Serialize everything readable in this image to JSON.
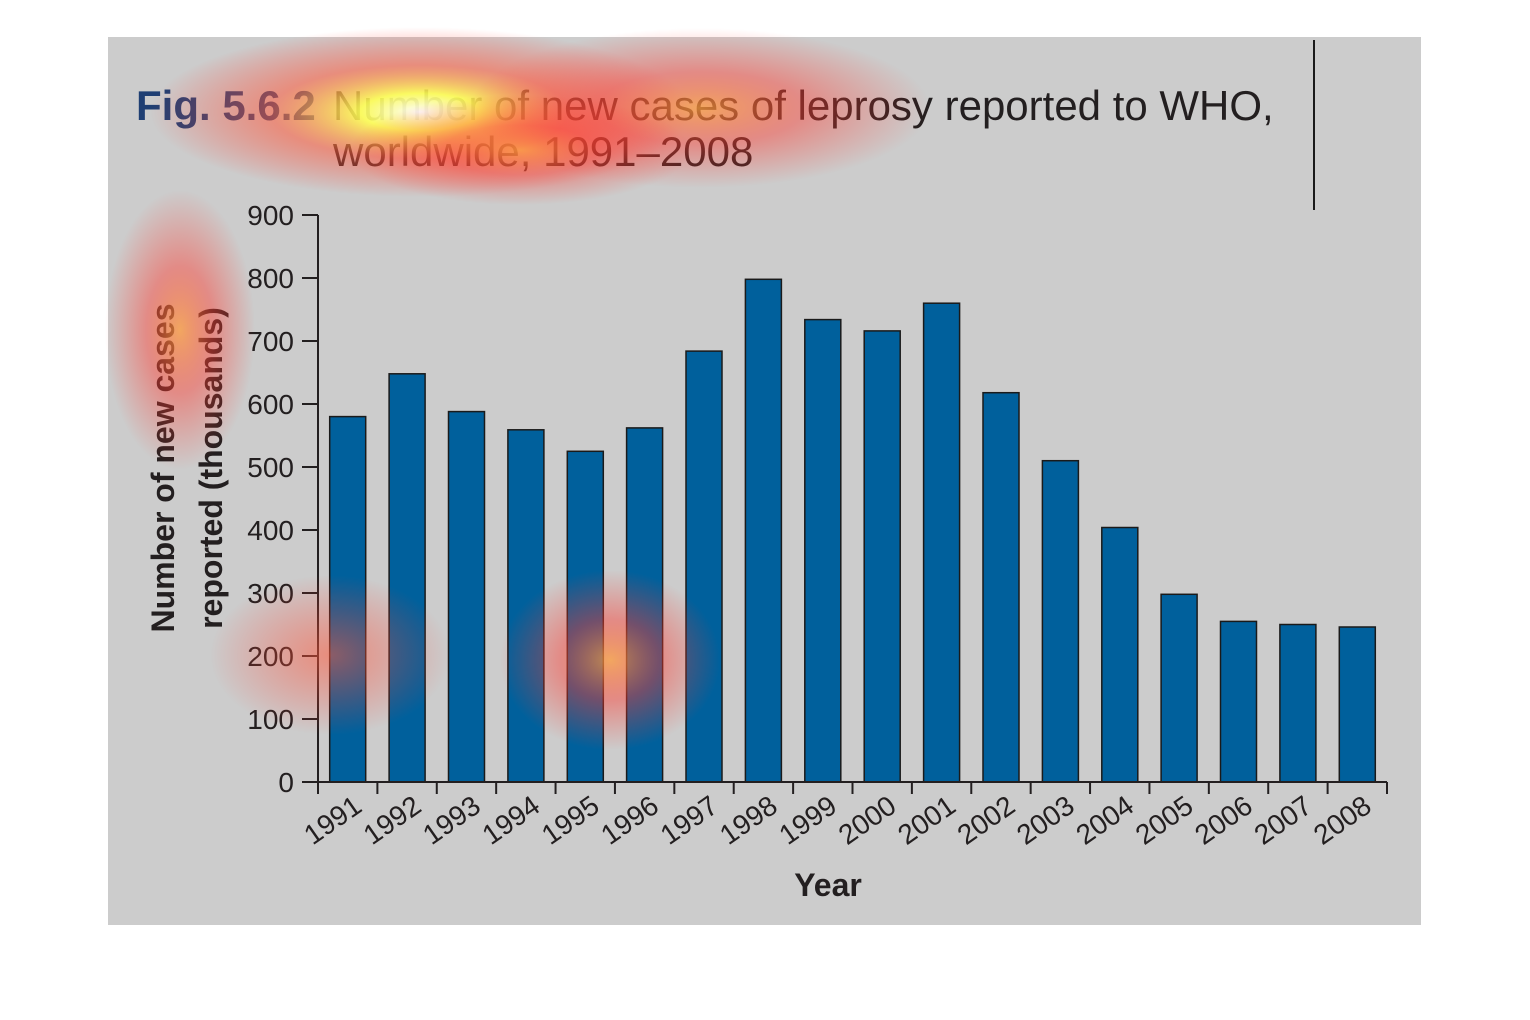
{
  "figure": {
    "label": "Fig. 5.6.2",
    "title_line1": "Number of new cases of leprosy reported to WHO,",
    "title_line2": "worldwide, 1991–2008"
  },
  "colors": {
    "panel_background": "#cccccc",
    "bar_fill": "#00609c",
    "bar_stroke": "#1a1a1a",
    "fig_label": "#1f3f73",
    "title_text": "#231f20",
    "heatmap_hot": "#ffff66",
    "heatmap_warm": "#ff3b30"
  },
  "overlay": {
    "type": "attention heatmap"
  },
  "chart_data": {
    "type": "bar",
    "title": "Number of new cases of leprosy reported to WHO, worldwide, 1991–2008",
    "xlabel": "Year",
    "ylabel_line1": "Number of new cases",
    "ylabel_line2": "reported (thousands)",
    "ylim": [
      0,
      900
    ],
    "yticks": [
      0,
      100,
      200,
      300,
      400,
      500,
      600,
      700,
      800,
      900
    ],
    "grid": false,
    "legend": "none",
    "categories": [
      "1991",
      "1992",
      "1993",
      "1994",
      "1995",
      "1996",
      "1997",
      "1998",
      "1999",
      "2000",
      "2001",
      "2002",
      "2003",
      "2004",
      "2005",
      "2006",
      "2007",
      "2008"
    ],
    "values": [
      580,
      648,
      588,
      559,
      525,
      562,
      684,
      798,
      734,
      716,
      760,
      618,
      510,
      404,
      298,
      255,
      250,
      246
    ]
  }
}
